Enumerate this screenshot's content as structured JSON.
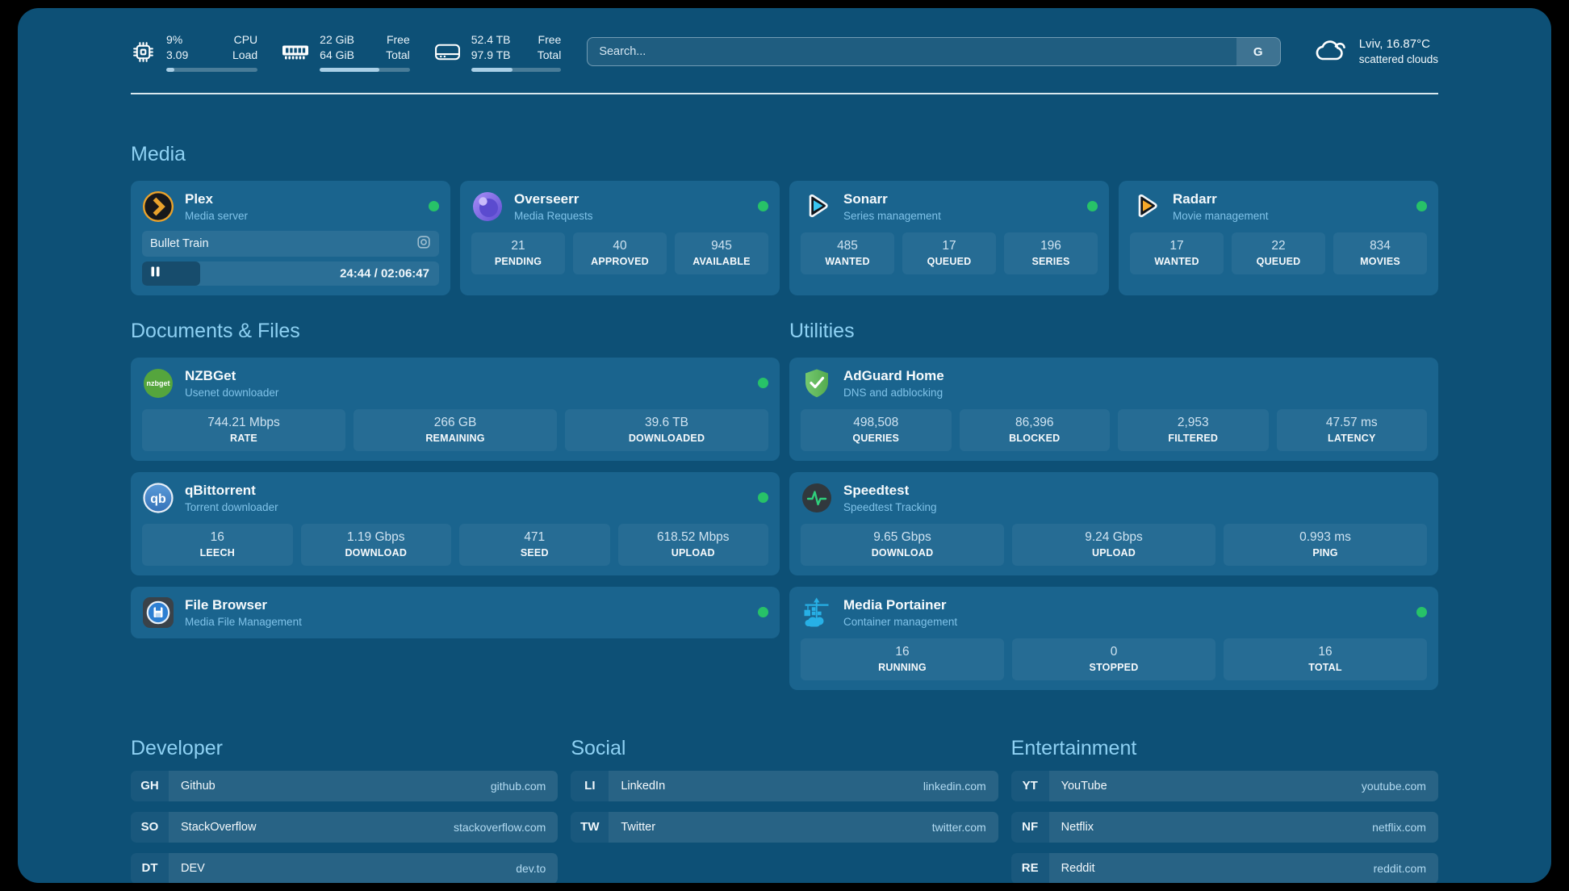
{
  "theme": {
    "page_bg": "#0d5076",
    "card_bg": "#1a648e",
    "heading_color": "#8ed1f3",
    "subtitle_color": "#7fc2e8",
    "online_color": "#27c268",
    "domain_color": "#b3dbf2"
  },
  "header": {
    "system_stats": [
      {
        "icon": "cpu-icon",
        "values": [
          "9%",
          "3.09"
        ],
        "labels": [
          "CPU",
          "Load"
        ],
        "progress_percent": 9
      },
      {
        "icon": "ram-icon",
        "values": [
          "22 GiB",
          "64 GiB"
        ],
        "labels": [
          "Free",
          "Total"
        ],
        "progress_percent": 66
      },
      {
        "icon": "disk-icon",
        "values": [
          "52.4 TB",
          "97.9 TB"
        ],
        "labels": [
          "Free",
          "Total"
        ],
        "progress_percent": 46
      }
    ],
    "search": {
      "placeholder": "Search...",
      "provider_label": "G"
    },
    "weather": {
      "title": "Lviv, 16.87°C",
      "subtitle": "scattered clouds"
    }
  },
  "sections": {
    "media": {
      "title": "Media",
      "cards": [
        {
          "name": "Plex",
          "subtitle": "Media server",
          "online": true,
          "now_playing": {
            "title": "Bullet Train",
            "state": "paused",
            "time_display": "24:44 / 02:06:47",
            "elapsed": "24:44",
            "duration": "02:06:47",
            "progress_percent": 19.5
          }
        },
        {
          "name": "Overseerr",
          "subtitle": "Media Requests",
          "online": true,
          "stats": [
            {
              "value": "21",
              "label": "PENDING"
            },
            {
              "value": "40",
              "label": "APPROVED"
            },
            {
              "value": "945",
              "label": "AVAILABLE"
            }
          ]
        },
        {
          "name": "Sonarr",
          "subtitle": "Series management",
          "online": true,
          "stats": [
            {
              "value": "485",
              "label": "WANTED"
            },
            {
              "value": "17",
              "label": "QUEUED"
            },
            {
              "value": "196",
              "label": "SERIES"
            }
          ]
        },
        {
          "name": "Radarr",
          "subtitle": "Movie management",
          "online": true,
          "stats": [
            {
              "value": "17",
              "label": "WANTED"
            },
            {
              "value": "22",
              "label": "QUEUED"
            },
            {
              "value": "834",
              "label": "MOVIES"
            }
          ]
        }
      ]
    },
    "documents": {
      "title": "Documents & Files",
      "cards": [
        {
          "name": "NZBGet",
          "subtitle": "Usenet downloader",
          "online": true,
          "stats": [
            {
              "value": "744.21 Mbps",
              "label": "RATE"
            },
            {
              "value": "266 GB",
              "label": "REMAINING"
            },
            {
              "value": "39.6 TB",
              "label": "DOWNLOADED"
            }
          ]
        },
        {
          "name": "qBittorrent",
          "subtitle": "Torrent downloader",
          "online": true,
          "stats": [
            {
              "value": "16",
              "label": "LEECH"
            },
            {
              "value": "1.19 Gbps",
              "label": "DOWNLOAD"
            },
            {
              "value": "471",
              "label": "SEED"
            },
            {
              "value": "618.52 Mbps",
              "label": "UPLOAD"
            }
          ]
        },
        {
          "name": "File Browser",
          "subtitle": "Media File Management",
          "online": true
        }
      ]
    },
    "utilities": {
      "title": "Utilities",
      "cards": [
        {
          "name": "AdGuard Home",
          "subtitle": "DNS and adblocking",
          "online": false,
          "stats": [
            {
              "value": "498,508",
              "label": "QUERIES"
            },
            {
              "value": "86,396",
              "label": "BLOCKED"
            },
            {
              "value": "2,953",
              "label": "FILTERED"
            },
            {
              "value": "47.57 ms",
              "label": "LATENCY"
            }
          ]
        },
        {
          "name": "Speedtest",
          "subtitle": "Speedtest Tracking",
          "online": false,
          "stats": [
            {
              "value": "9.65 Gbps",
              "label": "DOWNLOAD"
            },
            {
              "value": "9.24 Gbps",
              "label": "UPLOAD"
            },
            {
              "value": "0.993 ms",
              "label": "PING"
            }
          ]
        },
        {
          "name": "Media Portainer",
          "subtitle": "Container management",
          "online": true,
          "stats": [
            {
              "value": "16",
              "label": "RUNNING"
            },
            {
              "value": "0",
              "label": "STOPPED"
            },
            {
              "value": "16",
              "label": "TOTAL"
            }
          ]
        }
      ]
    },
    "links": [
      {
        "title": "Developer",
        "items": [
          {
            "abbr": "GH",
            "name": "Github",
            "url": "github.com"
          },
          {
            "abbr": "SO",
            "name": "StackOverflow",
            "url": "stackoverflow.com"
          },
          {
            "abbr": "DT",
            "name": "DEV",
            "url": "dev.to"
          }
        ]
      },
      {
        "title": "Social",
        "items": [
          {
            "abbr": "LI",
            "name": "LinkedIn",
            "url": "linkedin.com"
          },
          {
            "abbr": "TW",
            "name": "Twitter",
            "url": "twitter.com"
          }
        ]
      },
      {
        "title": "Entertainment",
        "items": [
          {
            "abbr": "YT",
            "name": "YouTube",
            "url": "youtube.com"
          },
          {
            "abbr": "NF",
            "name": "Netflix",
            "url": "netflix.com"
          },
          {
            "abbr": "RE",
            "name": "Reddit",
            "url": "reddit.com"
          }
        ]
      }
    ]
  }
}
